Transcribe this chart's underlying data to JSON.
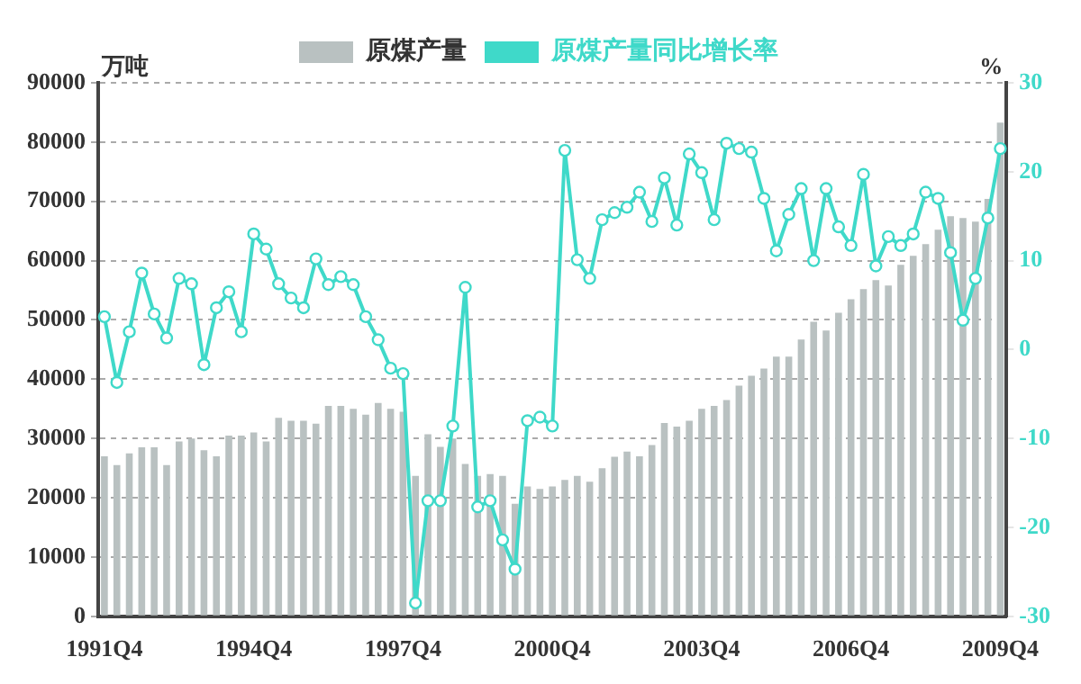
{
  "chart_data": {
    "type": "bar",
    "ylabel": "万吨",
    "y2label": "%",
    "categories": [
      "1991Q4",
      null,
      null,
      null,
      null,
      null,
      null,
      null,
      null,
      null,
      null,
      null,
      "1994Q4",
      null,
      null,
      null,
      null,
      null,
      null,
      null,
      null,
      null,
      null,
      null,
      "1997Q4",
      null,
      null,
      null,
      null,
      null,
      null,
      null,
      null,
      null,
      null,
      null,
      "2000Q4",
      null,
      null,
      null,
      null,
      null,
      null,
      null,
      null,
      null,
      null,
      null,
      "2003Q4",
      null,
      null,
      null,
      null,
      null,
      null,
      null,
      null,
      null,
      null,
      null,
      "2006Q4",
      null,
      null,
      null,
      null,
      null,
      null,
      null,
      null,
      null,
      null,
      null,
      "2009Q4"
    ],
    "series": [
      {
        "name": "原煤产量",
        "color": "#b9c1c1",
        "values": [
          27000,
          25500,
          27500,
          28500,
          28500,
          25500,
          29500,
          30000,
          28000,
          27000,
          30500,
          30500,
          31000,
          29500,
          33500,
          33000,
          33000,
          32500,
          35500,
          35500,
          35000,
          34000,
          36000,
          35000,
          34500,
          23700,
          30700,
          28600,
          30000,
          25700,
          23700,
          24000,
          23700,
          19000,
          21900,
          21500,
          21900,
          23000,
          23700,
          22700,
          25000,
          26900,
          27800,
          27000,
          28900,
          32600,
          32000,
          33000,
          35000,
          35500,
          36500,
          38900,
          40600,
          41800,
          43800,
          43800,
          46700,
          49700,
          48200,
          51200,
          53500,
          55200,
          56700,
          55800,
          59300,
          60800,
          62800,
          65200,
          67500,
          67200,
          66600,
          70400,
          83300
        ]
      },
      {
        "name": "原煤产量同比增长率",
        "type": "line",
        "axis": "y2",
        "color": "#3fd9c9",
        "marker": "circle",
        "values": [
          3.7,
          -3.7,
          2,
          8.6,
          4,
          1.3,
          8,
          7.4,
          -1.7,
          4.7,
          6.5,
          2,
          13,
          11.3,
          7.4,
          5.8,
          4.7,
          10.2,
          7.3,
          8.2,
          7.3,
          3.7,
          1.1,
          -2.1,
          -2.7,
          -28.5,
          -17,
          -17,
          -8.6,
          7,
          -17.7,
          -17,
          -21.4,
          -24.7,
          -8,
          -7.6,
          -8.6,
          22.4,
          10.1,
          8,
          14.6,
          15.4,
          16,
          17.7,
          14.4,
          19.3,
          14,
          22,
          19.9,
          14.6,
          23.2,
          22.6,
          22.2,
          17,
          11.1,
          15.2,
          18.1,
          10,
          18.1,
          13.8,
          11.7,
          19.7,
          9.4,
          12.7,
          11.7,
          13,
          17.7,
          17,
          10.9,
          3.3,
          8,
          14.8,
          22.6
        ]
      }
    ],
    "ylim": [
      0,
      90000
    ],
    "yticks": [
      0,
      10000,
      20000,
      30000,
      40000,
      50000,
      60000,
      70000,
      80000,
      90000
    ],
    "y2lim": [
      -30,
      30
    ],
    "y2ticks": [
      -30,
      -20,
      -10,
      0,
      10,
      20,
      30
    ],
    "grid": "y",
    "legend": "top"
  }
}
